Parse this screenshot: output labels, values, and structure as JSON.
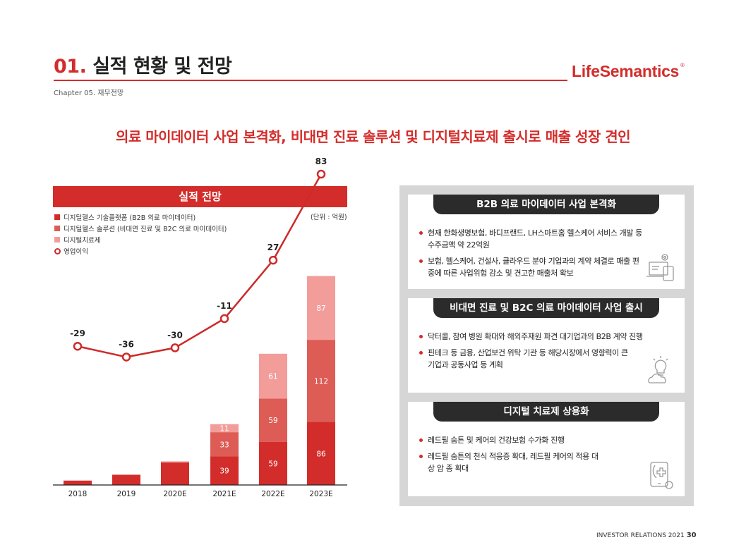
{
  "header": {
    "title_num": "01.",
    "title_text": "실적 현황 및 전망",
    "chapter": "Chapter 05. 재무전망",
    "logo": "LifeSemantics",
    "logo_mark": "®"
  },
  "headline": "의료 마이데이터 사업 본격화, 비대면 진료 솔루션 및 디지털치료제 출시로 매출 성장 견인",
  "chart_section": {
    "title": "실적 전망",
    "unit": "(단위 : 억원)"
  },
  "colors": {
    "accent": "#d32d2b",
    "series_platform": "#d32d2b",
    "series_solution": "#dd5c56",
    "series_dtx": "#f29d9a",
    "op_line": "#cc2b2a"
  },
  "chart_data": {
    "type": "bar",
    "stacked": true,
    "title": "실적 전망",
    "unit": "(단위 : 억원)",
    "categories": [
      "2018",
      "2019",
      "2020E",
      "2021E",
      "2022E",
      "2023E"
    ],
    "series": [
      {
        "name": "디지털헬스 기술플랫폼 (B2B 의료 마이데이터)",
        "values": [
          6,
          14,
          30,
          39,
          59,
          86
        ],
        "labels": [
          null,
          null,
          null,
          "39",
          "59",
          "86"
        ]
      },
      {
        "name": "디지털헬스 솔루션 (비대면 진료 및 B2C 의료 마이데이터)",
        "values": [
          0,
          0,
          2,
          33,
          59,
          112
        ],
        "labels": [
          null,
          null,
          null,
          "33",
          "59",
          "112"
        ]
      },
      {
        "name": "디지털치료제",
        "values": [
          0,
          0,
          0,
          11,
          61,
          87
        ],
        "labels": [
          null,
          null,
          null,
          "11",
          "61",
          "87"
        ]
      }
    ],
    "line": {
      "name": "영업이익",
      "type": "line",
      "values": [
        -29,
        -36,
        -30,
        -11,
        27,
        83
      ],
      "labels": [
        "-29",
        "-36",
        "-30",
        "-11",
        "27",
        "83"
      ]
    },
    "xlabel": "",
    "ylabel": ""
  },
  "cards": [
    {
      "title": "B2B 의료 마이데이터 사업 본격화",
      "bullets": [
        "현재 한화생명보험, 바디프랜드, LH스마트홈 헬스케어 서비스 개발 등 수주금액 약 22억원",
        "보험, 헬스케어, 건설사, 클라우드 분야 기업과의 계약 체결로 매출 편중에 따른 사업위험 감소 및 견고한 매출처 확보"
      ],
      "icon": "devices-settings-icon"
    },
    {
      "title": "비대면 진료 및 B2C 의료 마이데이터 사업 출시",
      "bullets": [
        "닥터콜, 참여 병원 확대와 해외주재원 파견 대기업과의 B2B 계약 진행",
        "핀테크 등 금융, 산업보건 위탁 기관 등 해당시장에서 영향력이 큰 기업과 공동사업 등 계획"
      ],
      "icon": "lightbulb-cloud-icon"
    },
    {
      "title": "디지털 치료제 상용화",
      "bullets": [
        "레드필 숨튼 및 케어의 건강보험 수가화 진행",
        "레드필 숨튼의 천식 적응증 확대, 레드필 케어의 적용 대상 암 종 확대"
      ],
      "icon": "medical-tablet-icon"
    }
  ],
  "footer": {
    "label": "INVESTOR RELATIONS 2021",
    "page": "30"
  }
}
